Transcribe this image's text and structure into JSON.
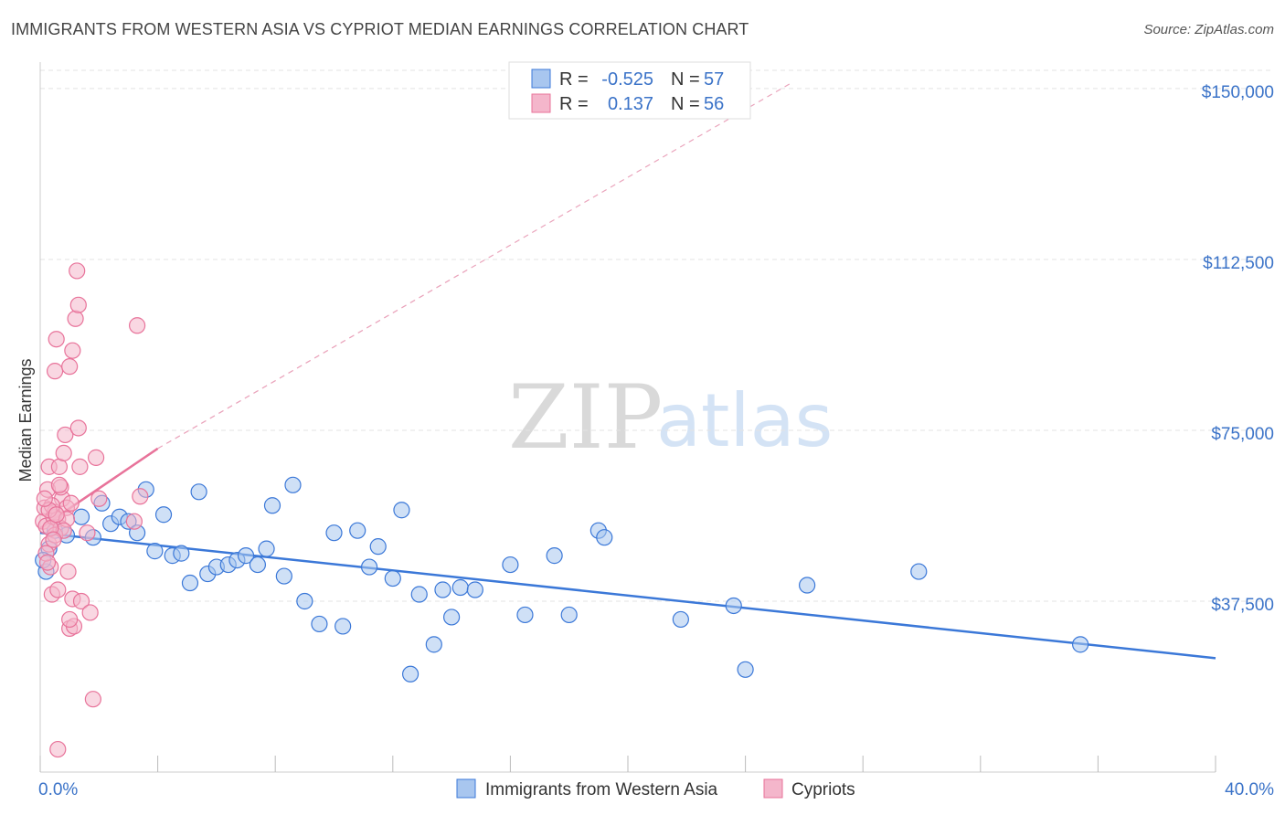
{
  "title": "IMMIGRANTS FROM WESTERN ASIA VS CYPRIOT MEDIAN EARNINGS CORRELATION CHART",
  "source": "Source: ZipAtlas.com",
  "watermark": {
    "zip": "ZIP",
    "atlas": "atlas"
  },
  "colors": {
    "blue": "#3b78d8",
    "blue_fill": "#a8c6ef",
    "pink": "#e8739a",
    "pink_fill": "#f4b6cb",
    "tick_label": "#3b73c8",
    "grid": "#e3e3e3"
  },
  "legend": {
    "row1": {
      "r_label": "R =",
      "r_value": "-0.525",
      "n_label": "N =",
      "n_value": "57"
    },
    "row2": {
      "r_label": "R =",
      "r_value": "0.137",
      "n_label": "N =",
      "n_value": "56"
    }
  },
  "bottom_legend": {
    "series1": "Immigrants from Western Asia",
    "series2": "Cypriots"
  },
  "chart_data": {
    "type": "scatter",
    "ylabel": "Median Earnings",
    "xlim": [
      0,
      40
    ],
    "ylim": [
      0,
      155000
    ],
    "x_tick_labels": {
      "left": "0.0%",
      "right": "40.0%"
    },
    "y_ticks": [
      {
        "value": 37500,
        "label": "$37,500"
      },
      {
        "value": 75000,
        "label": "$75,000"
      },
      {
        "value": 112500,
        "label": "$112,500"
      },
      {
        "value": 150000,
        "label": "$150,000"
      }
    ],
    "series": [
      {
        "name": "Immigrants from Western Asia",
        "color": "#3b78d8",
        "trend": {
          "x": [
            0,
            40
          ],
          "y": [
            52500,
            25000
          ]
        },
        "points": [
          [
            0.2,
            44000
          ],
          [
            0.3,
            49000
          ],
          [
            0.5,
            53000
          ],
          [
            0.9,
            52000
          ],
          [
            1.4,
            56000
          ],
          [
            1.8,
            51500
          ],
          [
            2.1,
            59000
          ],
          [
            2.4,
            54500
          ],
          [
            2.7,
            56000
          ],
          [
            3.0,
            55000
          ],
          [
            3.3,
            52500
          ],
          [
            3.6,
            62000
          ],
          [
            3.9,
            48500
          ],
          [
            4.2,
            56500
          ],
          [
            4.5,
            47500
          ],
          [
            4.8,
            48000
          ],
          [
            5.1,
            41500
          ],
          [
            5.4,
            61500
          ],
          [
            5.7,
            43500
          ],
          [
            6.0,
            45000
          ],
          [
            6.4,
            45500
          ],
          [
            6.7,
            46500
          ],
          [
            7.0,
            47500
          ],
          [
            7.4,
            45500
          ],
          [
            7.7,
            49000
          ],
          [
            7.9,
            58500
          ],
          [
            8.3,
            43000
          ],
          [
            8.6,
            63000
          ],
          [
            9.0,
            37500
          ],
          [
            9.5,
            32500
          ],
          [
            10.0,
            52500
          ],
          [
            10.3,
            32000
          ],
          [
            10.8,
            53000
          ],
          [
            11.2,
            45000
          ],
          [
            11.5,
            49500
          ],
          [
            12.0,
            42500
          ],
          [
            12.3,
            57500
          ],
          [
            12.6,
            21500
          ],
          [
            12.9,
            39000
          ],
          [
            13.4,
            28000
          ],
          [
            13.7,
            40000
          ],
          [
            14.0,
            34000
          ],
          [
            14.3,
            40500
          ],
          [
            14.8,
            40000
          ],
          [
            16.0,
            45500
          ],
          [
            16.5,
            34500
          ],
          [
            17.5,
            47500
          ],
          [
            18.0,
            34500
          ],
          [
            19.0,
            53000
          ],
          [
            19.2,
            51500
          ],
          [
            21.8,
            33500
          ],
          [
            23.6,
            36500
          ],
          [
            24.0,
            22500
          ],
          [
            26.1,
            41000
          ],
          [
            29.9,
            44000
          ],
          [
            35.4,
            28000
          ],
          [
            0.1,
            46500
          ]
        ]
      },
      {
        "name": "Cypriots",
        "color": "#e8739a",
        "trend": {
          "x": [
            0,
            4
          ],
          "y": [
            53500,
            71000
          ],
          "dashed_x": [
            4,
            25.5
          ],
          "dashed_y": [
            71000,
            151000
          ]
        },
        "points": [
          [
            0.1,
            55000
          ],
          [
            0.15,
            58000
          ],
          [
            0.2,
            54000
          ],
          [
            0.25,
            62000
          ],
          [
            0.3,
            67000
          ],
          [
            0.3,
            50000
          ],
          [
            0.35,
            45000
          ],
          [
            0.4,
            39000
          ],
          [
            0.45,
            56000
          ],
          [
            0.5,
            88000
          ],
          [
            0.5,
            57000
          ],
          [
            0.55,
            95000
          ],
          [
            0.6,
            55500
          ],
          [
            0.65,
            67000
          ],
          [
            0.7,
            53500
          ],
          [
            0.75,
            60000
          ],
          [
            0.8,
            70000
          ],
          [
            0.85,
            74000
          ],
          [
            0.9,
            58000
          ],
          [
            0.95,
            44000
          ],
          [
            1.0,
            31500
          ],
          [
            1.0,
            89000
          ],
          [
            1.05,
            59000
          ],
          [
            1.1,
            92500
          ],
          [
            1.15,
            32000
          ],
          [
            1.2,
            99500
          ],
          [
            1.25,
            110000
          ],
          [
            1.3,
            75500
          ],
          [
            1.3,
            102500
          ],
          [
            1.35,
            67000
          ],
          [
            1.1,
            38000
          ],
          [
            1.4,
            37500
          ],
          [
            1.6,
            52500
          ],
          [
            1.7,
            35000
          ],
          [
            1.9,
            69000
          ],
          [
            2.0,
            60000
          ],
          [
            1.8,
            16000
          ],
          [
            0.6,
            5000
          ],
          [
            3.2,
            55000
          ],
          [
            3.3,
            98000
          ],
          [
            3.4,
            60500
          ],
          [
            0.2,
            48000
          ],
          [
            0.4,
            58500
          ],
          [
            0.5,
            52000
          ],
          [
            0.7,
            62500
          ],
          [
            0.9,
            55500
          ],
          [
            1.0,
            33500
          ],
          [
            0.3,
            57500
          ],
          [
            0.6,
            40000
          ],
          [
            0.8,
            53000
          ],
          [
            0.15,
            60000
          ],
          [
            0.35,
            53500
          ],
          [
            0.55,
            56500
          ],
          [
            0.45,
            51000
          ],
          [
            0.25,
            46000
          ],
          [
            0.65,
            63000
          ]
        ]
      }
    ],
    "legend_position": "top-center"
  }
}
